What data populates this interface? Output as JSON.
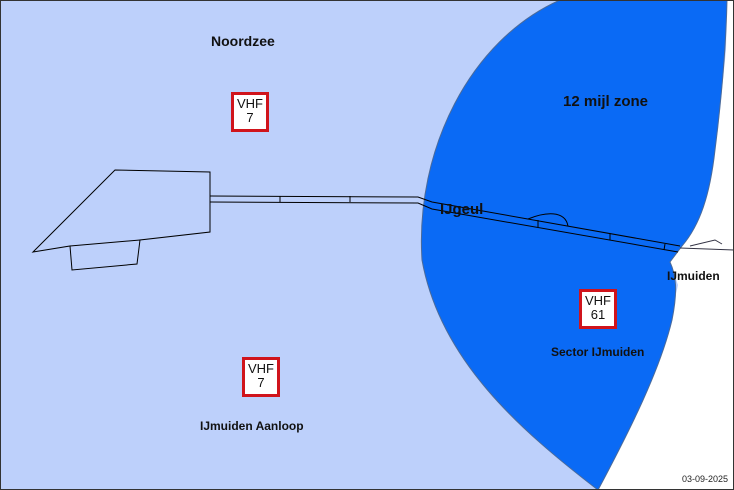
{
  "colors": {
    "sea": "#bdd0fb",
    "zone": "#0a6af5",
    "land": "#ffffff",
    "vhf_border": "#d0141c"
  },
  "labels": {
    "noordzee": "Noordzee",
    "zone": "12 mijl zone",
    "ijgeul": "IJgeul",
    "ijmuiden": "IJmuiden",
    "sector": "Sector IJmuiden",
    "aanloop": "IJmuiden Aanloop"
  },
  "vhf": [
    {
      "line1": "VHF",
      "line2": "7"
    },
    {
      "line1": "VHF",
      "line2": "61"
    },
    {
      "line1": "VHF",
      "line2": "7"
    }
  ],
  "date": "03-09-2025"
}
